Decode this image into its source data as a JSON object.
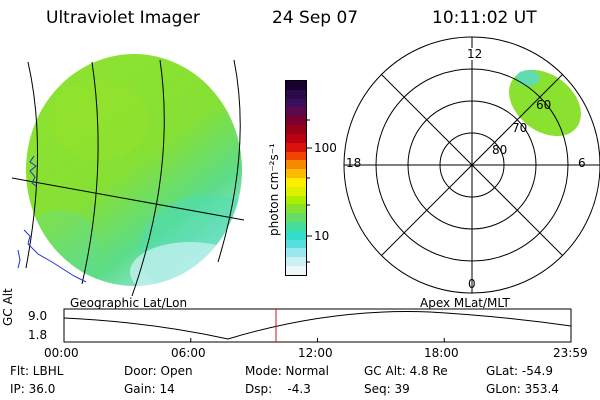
{
  "header": {
    "instrument": "Ultraviolet Imager",
    "date": "24 Sep 07",
    "time": "10:11:02 UT"
  },
  "left_panel": {
    "caption": "Geographic Lat/Lon"
  },
  "right_panel": {
    "caption": "Apex MLat/MLT",
    "mlt_labels": {
      "top": "12",
      "left": "18",
      "right": "6",
      "bottom": "0"
    },
    "lat_labels": [
      "60",
      "70",
      "80"
    ]
  },
  "colorbar": {
    "unit_label": "photon cm⁻²s⁻¹",
    "tick_100": "100",
    "tick_10": "10",
    "colors": [
      "#1a0030",
      "#2b0a4a",
      "#3a0f5e",
      "#5a0a4a",
      "#7a0030",
      "#990018",
      "#bb0010",
      "#dd1010",
      "#ee4400",
      "#f78800",
      "#ffbb00",
      "#ffee00",
      "#ddf000",
      "#aaee00",
      "#88e030",
      "#66dd66",
      "#44dd99",
      "#33ddcc",
      "#55e0dd",
      "#99e8ee",
      "#ccf0f4",
      "#eef8fa"
    ]
  },
  "timeline": {
    "axis_label": "GC Alt",
    "y_labels": [
      "9.0",
      "1.8"
    ],
    "time_ticks": [
      "00:00",
      "06:00",
      "12:00",
      "18:00",
      "23:59"
    ],
    "current_marker_color": "#d01010"
  },
  "status": {
    "flt": "Flt: LBHL",
    "ip": "IP: 36.0",
    "door": "Door: Open",
    "gain": "Gain: 14",
    "mode": "Mode: Normal",
    "dsp": "Dsp:    -4.3",
    "gcalt": "GC Alt: 4.8 Re",
    "seq": "Seq: 39",
    "glat": "GLat: -54.9",
    "glon": "GLon: 353.4"
  },
  "colors": {
    "image_green": "#88e030",
    "image_cyan": "#44ddcc",
    "image_light": "#bdeff0",
    "coast": "#2233cc"
  }
}
